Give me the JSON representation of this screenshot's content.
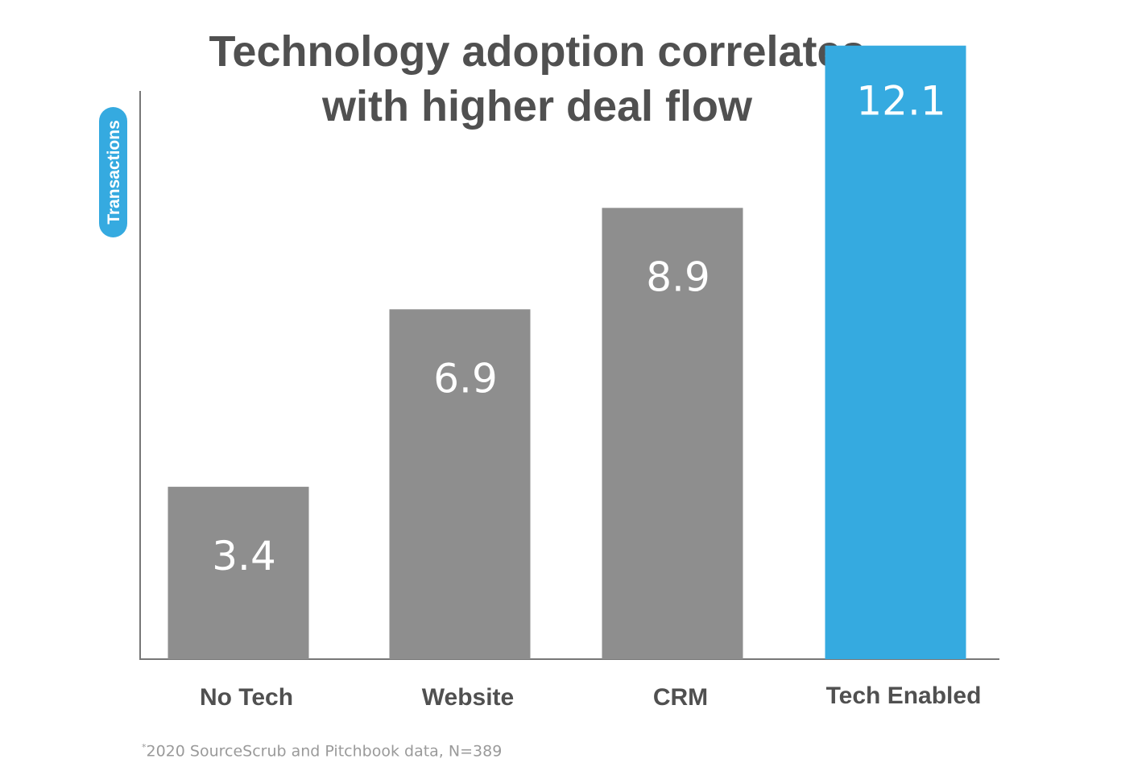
{
  "chart_data": {
    "type": "bar",
    "title_lines": [
      "Technology adoption correlates",
      "with higher deal flow"
    ],
    "ylabel": "Transactions",
    "categories": [
      "No Tech",
      "Website",
      "CRM",
      "Tech Enabled"
    ],
    "values": [
      3.4,
      6.9,
      8.9,
      12.1
    ],
    "value_labels": [
      "3.4",
      "6.9",
      "8.9",
      "12.1"
    ],
    "ylim": [
      0,
      13
    ],
    "bar_colors": [
      "#8e8e8e",
      "#8e8e8e",
      "#8e8e8e",
      "#35aae0"
    ],
    "highlight_category": "Tech Enabled",
    "grid": false
  },
  "footnote": {
    "marker": "*",
    "text": "2020 SourceScrub and Pitchbook data,  N=389"
  },
  "colors": {
    "title": "#505050",
    "axis": "#777777",
    "category_label": "#505050",
    "value_label": "#ffffff",
    "ylabel_pill": "#35aae0"
  }
}
